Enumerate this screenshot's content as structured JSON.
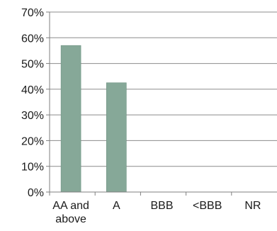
{
  "chart_data": {
    "type": "bar",
    "title": "",
    "xlabel": "",
    "ylabel": "",
    "categories": [
      [
        "AA and",
        "above"
      ],
      [
        "A"
      ],
      [
        "BBB"
      ],
      [
        "<BBB"
      ],
      [
        "NR"
      ]
    ],
    "series": [
      {
        "values": [
          57,
          42.5,
          0,
          0,
          0
        ]
      }
    ],
    "ylim": [
      0,
      70
    ],
    "yticks": [
      "0%",
      "10%",
      "20%",
      "30%",
      "40%",
      "50%",
      "60%",
      "70%"
    ],
    "grid": true,
    "colors": {
      "bar": "#86a898",
      "bar_edge": "#6f9282",
      "grid": "#8c8c8c",
      "axis": "#7f7f7f",
      "text": "#1a1a1a"
    }
  }
}
